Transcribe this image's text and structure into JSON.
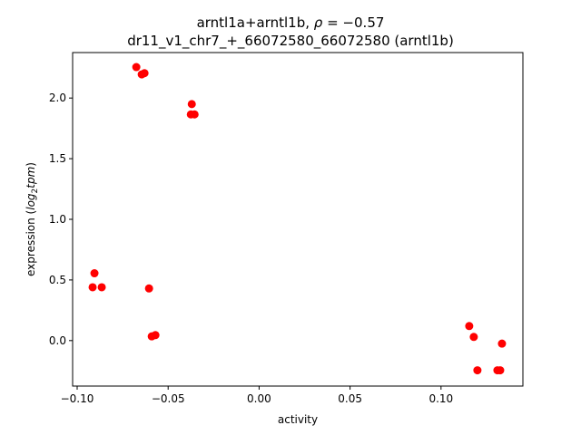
{
  "chart_data": {
    "type": "scatter",
    "title_line1": "arntl1a+arntl1b, ",
    "title_rho_symbol": "ρ",
    "title_rho_value": " = −0.57",
    "title_line2": "dr11_v1_chr7_+_66072580_66072580 (arntl1b)",
    "xlabel": "activity",
    "ylabel_prefix": "expression (",
    "ylabel_math": "log",
    "ylabel_sub": "2",
    "ylabel_math2": "tpm",
    "ylabel_suffix": ")",
    "xlim": [
      -0.1025,
      0.145
    ],
    "ylim": [
      -0.375,
      2.375
    ],
    "xticks": [
      -0.1,
      -0.05,
      0.0,
      0.05,
      0.1
    ],
    "xtick_labels": [
      "−0.10",
      "−0.05",
      "0.00",
      "0.05",
      "0.10"
    ],
    "yticks": [
      0.0,
      0.5,
      1.0,
      1.5,
      2.0
    ],
    "ytick_labels": [
      "0.0",
      "0.5",
      "1.0",
      "1.5",
      "2.0"
    ],
    "marker_color": "#ff0000",
    "points": [
      {
        "x": -0.0675,
        "y": 2.255
      },
      {
        "x": -0.0645,
        "y": 2.195
      },
      {
        "x": -0.063,
        "y": 2.205
      },
      {
        "x": -0.037,
        "y": 1.95
      },
      {
        "x": -0.0375,
        "y": 1.865
      },
      {
        "x": -0.0355,
        "y": 1.865
      },
      {
        "x": -0.0905,
        "y": 0.555
      },
      {
        "x": -0.0915,
        "y": 0.44
      },
      {
        "x": -0.0865,
        "y": 0.44
      },
      {
        "x": -0.0605,
        "y": 0.43
      },
      {
        "x": -0.059,
        "y": 0.035
      },
      {
        "x": -0.057,
        "y": 0.045
      },
      {
        "x": 0.1155,
        "y": 0.12
      },
      {
        "x": 0.118,
        "y": 0.03
      },
      {
        "x": 0.12,
        "y": -0.245
      },
      {
        "x": 0.131,
        "y": -0.245
      },
      {
        "x": 0.1325,
        "y": -0.245
      },
      {
        "x": 0.1335,
        "y": -0.025
      }
    ]
  }
}
